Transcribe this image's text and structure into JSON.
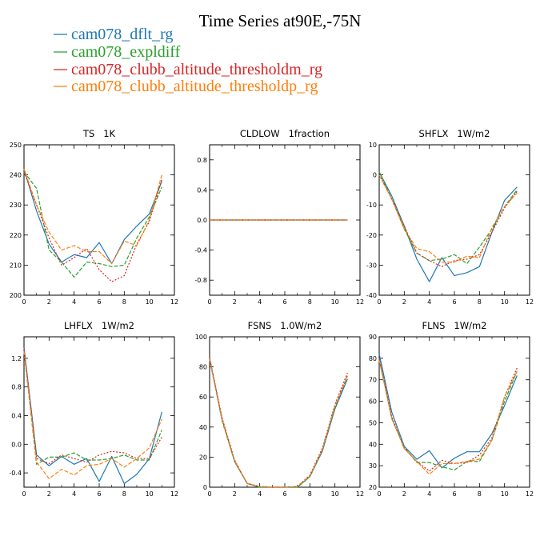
{
  "title": "Time Series at90E,-75N",
  "legend": [
    {
      "name": "cam078_dflt_rg",
      "color": "#1f77b4",
      "dash": ""
    },
    {
      "name": "cam078_expldiff",
      "color": "#2ca02c",
      "dash": "5,2"
    },
    {
      "name": "cam078_clubb_altitude_thresholdm_rg",
      "color": "#d62728",
      "dash": "2,2"
    },
    {
      "name": "cam078_clubb_altitude_thresholdp_rg",
      "color": "#ff7f0e",
      "dash": "5,2"
    }
  ],
  "chart_data": [
    {
      "type": "line",
      "title": "TS   1K",
      "xlim": [
        0,
        12
      ],
      "ylim": [
        200,
        250
      ],
      "xticks": [
        0,
        2,
        4,
        6,
        8,
        10,
        12
      ],
      "yticks": [
        200,
        210,
        220,
        230,
        240,
        250
      ],
      "yticklabels": [
        "200",
        "210",
        "220",
        "230",
        "240",
        "250"
      ],
      "x": [
        0,
        1,
        2,
        3,
        4,
        5,
        6,
        7,
        8,
        9,
        10,
        11
      ],
      "series": [
        {
          "name": "cam078_dflt_rg",
          "values": [
            242,
            228,
            217,
            211,
            213.5,
            212.5,
            217.5,
            210.5,
            218.5,
            223,
            227,
            238
          ]
        },
        {
          "name": "cam078_expldiff",
          "values": [
            241,
            235.5,
            215,
            211,
            206,
            211,
            210.5,
            209.5,
            210,
            219,
            226,
            236
          ]
        },
        {
          "name": "cam078_clubb_altitude_thresholdm_rg",
          "values": [
            241,
            230,
            219,
            210,
            212.5,
            215.5,
            208.5,
            204.5,
            206.5,
            217,
            224.5,
            238.5
          ]
        },
        {
          "name": "cam078_clubb_altitude_thresholdp_rg",
          "values": [
            242,
            230,
            221,
            215,
            216.5,
            214.5,
            214.5,
            210.5,
            218,
            216.5,
            225,
            240
          ]
        }
      ]
    },
    {
      "type": "line",
      "title": "CLDLOW   1fraction",
      "xlim": [
        0,
        12
      ],
      "ylim": [
        -1.0,
        1.0
      ],
      "xticks": [
        0,
        2,
        4,
        6,
        8,
        10,
        12
      ],
      "yticks": [
        -0.8,
        -0.4,
        0.0,
        0.4,
        0.8
      ],
      "yticklabels": [
        "-0.8",
        "-0.4",
        "0.0",
        "0.4",
        "0.8"
      ],
      "x": [
        0,
        1,
        2,
        3,
        4,
        5,
        6,
        7,
        8,
        9,
        10,
        11
      ],
      "series": [
        {
          "name": "cam078_dflt_rg",
          "values": [
            0,
            0,
            0,
            0,
            0,
            0,
            0,
            0,
            0,
            0,
            0,
            0
          ]
        },
        {
          "name": "cam078_expldiff",
          "values": [
            0,
            0,
            0,
            0,
            0,
            0,
            0,
            0,
            0,
            0,
            0,
            0
          ]
        },
        {
          "name": "cam078_clubb_altitude_thresholdm_rg",
          "values": [
            0,
            0,
            0,
            0,
            0,
            0,
            0,
            0,
            0,
            0,
            0,
            0
          ]
        },
        {
          "name": "cam078_clubb_altitude_thresholdp_rg",
          "values": [
            0,
            0,
            0,
            0,
            0,
            0,
            0,
            0,
            0,
            0,
            0,
            0
          ]
        }
      ]
    },
    {
      "type": "line",
      "title": "SHFLX   1W/m2",
      "xlim": [
        0,
        12
      ],
      "ylim": [
        -40,
        10
      ],
      "xticks": [
        0,
        2,
        4,
        6,
        8,
        10,
        12
      ],
      "yticks": [
        -40,
        -30,
        -20,
        -10,
        0,
        10
      ],
      "yticklabels": [
        "-40",
        "-30",
        "-20",
        "-10",
        "0",
        "10"
      ],
      "x": [
        0,
        1,
        2,
        3,
        4,
        5,
        6,
        7,
        8,
        9,
        10,
        11
      ],
      "series": [
        {
          "name": "cam078_dflt_rg",
          "values": [
            1,
            -7,
            -17,
            -28,
            -35.5,
            -27.5,
            -33.5,
            -32.5,
            -30.5,
            -19,
            -8.5,
            -4
          ]
        },
        {
          "name": "cam078_expldiff",
          "values": [
            1,
            -8,
            -18,
            -26,
            -28.5,
            -28,
            -26.5,
            -29.5,
            -24,
            -18,
            -10.5,
            -5
          ]
        },
        {
          "name": "cam078_clubb_altitude_thresholdm_rg",
          "values": [
            0,
            -8,
            -17,
            -26,
            -28.5,
            -30.5,
            -28.5,
            -28,
            -26.5,
            -19,
            -11,
            -5.5
          ]
        },
        {
          "name": "cam078_clubb_altitude_thresholdp_rg",
          "values": [
            0,
            -8,
            -18,
            -24.5,
            -25.5,
            -29,
            -29,
            -27,
            -27.5,
            -17.5,
            -10.5,
            -6
          ]
        }
      ]
    },
    {
      "type": "line",
      "title": "LHFLX   1W/m2",
      "xlim": [
        0,
        12
      ],
      "ylim": [
        -0.6,
        1.5
      ],
      "xticks": [
        0,
        2,
        4,
        6,
        8,
        10,
        12
      ],
      "yticks": [
        -0.4,
        0.0,
        0.4,
        0.8,
        1.2
      ],
      "yticklabels": [
        "-0.4",
        "0.0",
        "0.4",
        "0.8",
        "1.2"
      ],
      "x": [
        0,
        1,
        2,
        3,
        4,
        5,
        6,
        7,
        8,
        9,
        10,
        11
      ],
      "series": [
        {
          "name": "cam078_dflt_rg",
          "values": [
            1.35,
            -0.15,
            -0.3,
            -0.17,
            -0.28,
            -0.2,
            -0.52,
            -0.17,
            -0.55,
            -0.42,
            -0.2,
            0.45
          ]
        },
        {
          "name": "cam078_expldiff",
          "values": [
            1.3,
            -0.28,
            -0.18,
            -0.18,
            -0.12,
            -0.22,
            -0.22,
            -0.2,
            -0.15,
            -0.22,
            -0.22,
            0.2
          ]
        },
        {
          "name": "cam078_clubb_altitude_thresholdm_rg",
          "values": [
            1.35,
            -0.2,
            -0.27,
            -0.15,
            -0.2,
            -0.25,
            -0.15,
            -0.1,
            -0.12,
            -0.2,
            -0.2,
            0.1
          ]
        },
        {
          "name": "cam078_clubb_altitude_thresholdp_rg",
          "values": [
            1.3,
            -0.25,
            -0.48,
            -0.35,
            -0.43,
            -0.3,
            -0.28,
            -0.2,
            -0.32,
            -0.2,
            -0.05,
            0.35
          ]
        }
      ]
    },
    {
      "type": "line",
      "title": "FSNS   1.0W/m2",
      "xlim": [
        0,
        12
      ],
      "ylim": [
        0,
        100
      ],
      "xticks": [
        0,
        2,
        4,
        6,
        8,
        10,
        12
      ],
      "yticks": [
        0,
        20,
        40,
        60,
        80,
        100
      ],
      "yticklabels": [
        "0",
        "20",
        "40",
        "60",
        "80",
        "100"
      ],
      "x": [
        0,
        1,
        2,
        3,
        4,
        5,
        6,
        7,
        8,
        9,
        10,
        11
      ],
      "series": [
        {
          "name": "cam078_dflt_rg",
          "values": [
            86,
            45,
            17,
            2.5,
            0,
            0,
            0,
            0,
            7,
            24,
            52,
            72
          ]
        },
        {
          "name": "cam078_expldiff",
          "values": [
            85,
            44,
            17,
            2.5,
            0,
            0,
            0,
            0,
            7,
            25,
            53,
            74
          ]
        },
        {
          "name": "cam078_clubb_altitude_thresholdm_rg",
          "values": [
            86,
            46,
            18,
            2.5,
            0.5,
            0,
            0,
            0.5,
            8,
            26,
            55,
            76
          ]
        },
        {
          "name": "cam078_clubb_altitude_thresholdp_rg",
          "values": [
            85,
            45,
            17.5,
            2.5,
            0.5,
            0,
            0,
            0.5,
            7.5,
            25,
            54,
            74
          ]
        }
      ]
    },
    {
      "type": "line",
      "title": "FLNS   1W/m2",
      "xlim": [
        0,
        12
      ],
      "ylim": [
        20,
        90
      ],
      "xticks": [
        0,
        2,
        4,
        6,
        8,
        10,
        12
      ],
      "yticks": [
        20,
        30,
        40,
        50,
        60,
        70,
        80,
        90
      ],
      "yticklabels": [
        "20",
        "30",
        "40",
        "50",
        "60",
        "70",
        "80",
        "90"
      ],
      "x": [
        0,
        1,
        2,
        3,
        4,
        5,
        6,
        7,
        8,
        9,
        10,
        11
      ],
      "series": [
        {
          "name": "cam078_dflt_rg",
          "values": [
            82,
            55,
            39,
            33,
            37,
            29,
            33.5,
            36.5,
            36.5,
            45,
            58,
            72
          ]
        },
        {
          "name": "cam078_expldiff",
          "values": [
            80,
            52,
            38.5,
            31.5,
            31.5,
            29.5,
            28,
            32,
            32,
            42,
            60,
            74
          ]
        },
        {
          "name": "cam078_clubb_altitude_thresholdm_rg",
          "values": [
            80,
            53,
            38,
            32,
            27.5,
            32.5,
            31,
            31.5,
            35,
            43,
            62,
            75.5
          ]
        },
        {
          "name": "cam078_clubb_altitude_thresholdp_rg",
          "values": [
            79,
            52,
            38,
            32,
            26,
            31,
            31,
            32,
            33,
            42,
            62,
            74
          ]
        }
      ]
    }
  ]
}
